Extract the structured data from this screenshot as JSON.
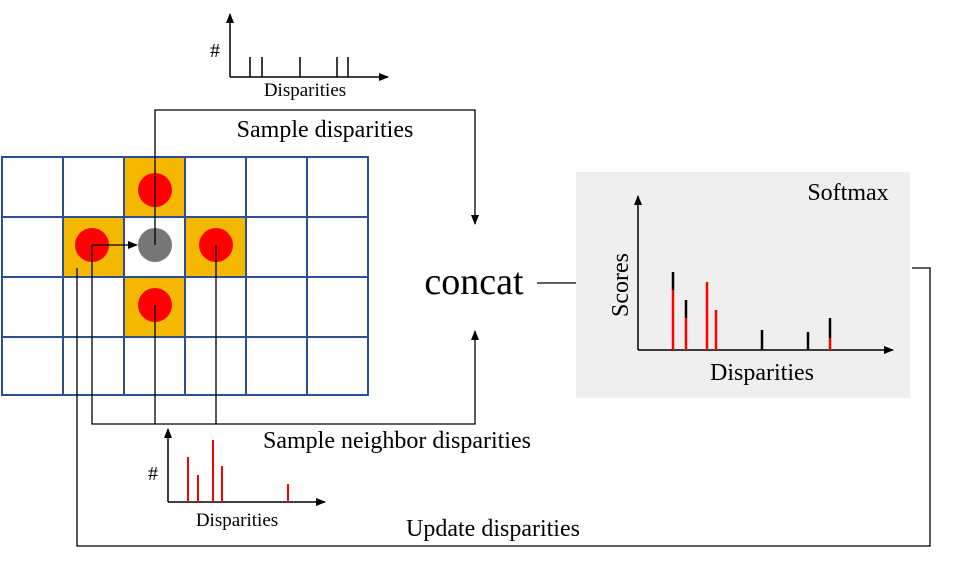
{
  "top_histogram": {
    "y_label": "#",
    "x_label": "Disparities"
  },
  "sample_disparities": "Sample disparities",
  "concat": "concat",
  "softmax": {
    "title": "Softmax",
    "y_label": "Scores",
    "x_label": "Disparities"
  },
  "sample_neighbor_disparities": "Sample neighbor disparities",
  "neighbor_histogram": {
    "y_label": "#",
    "x_label": "Disparities"
  },
  "update_disparities": "Update disparities"
}
